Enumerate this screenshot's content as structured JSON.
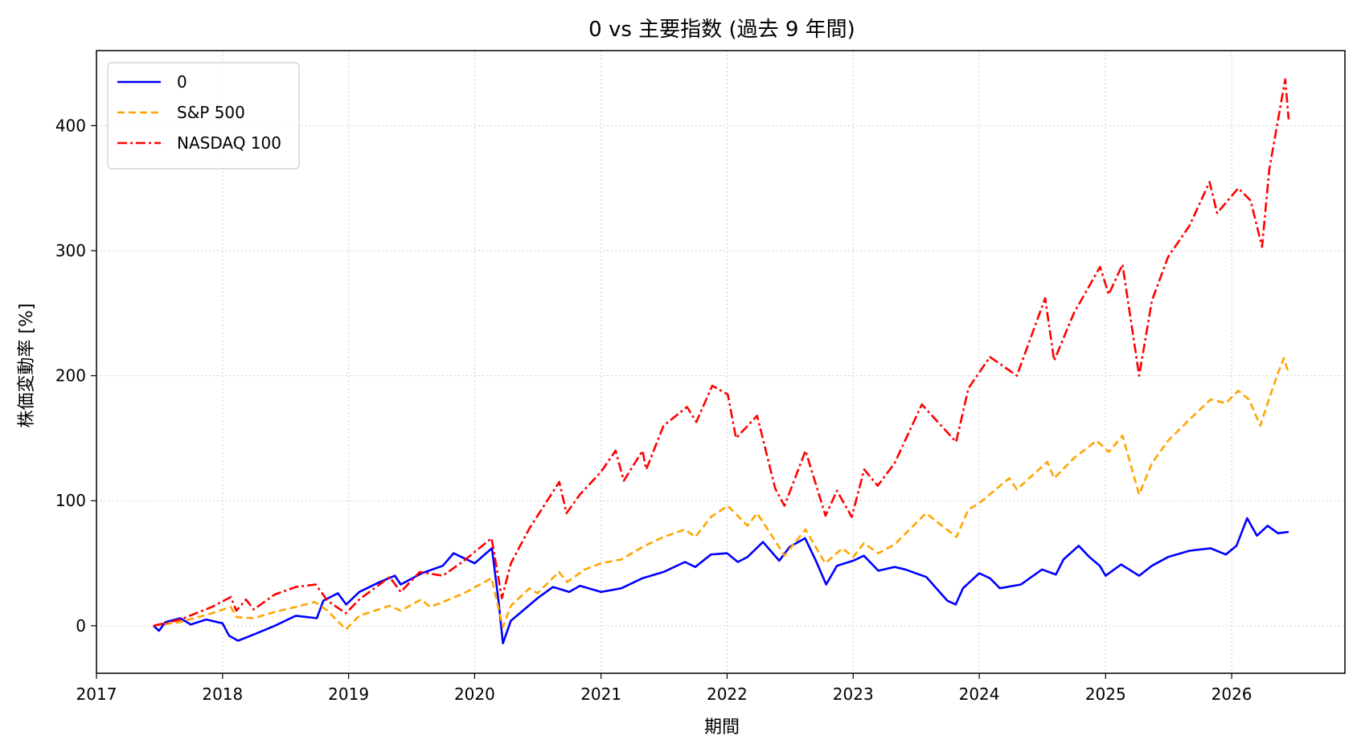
{
  "chart_data": {
    "type": "line",
    "title": "0 vs 主要指数 (過去 9 年間)",
    "xlabel": "期間",
    "ylabel": "株価変動率 [%]",
    "xlim": [
      "2017-01-01",
      "2026-11-25"
    ],
    "ylim": [
      -38,
      460
    ],
    "x_ticks": [
      "2017",
      "2018",
      "2019",
      "2020",
      "2021",
      "2022",
      "2023",
      "2024",
      "2025",
      "2026"
    ],
    "y_ticks": [
      0,
      100,
      200,
      300,
      400
    ],
    "grid": true,
    "legend_position": "top-left",
    "series": [
      {
        "name": "0",
        "color": "#0000ff",
        "style": "solid",
        "points": [
          [
            "2017-06-15",
            0
          ],
          [
            "2017-07-01",
            -4
          ],
          [
            "2017-07-20",
            3
          ],
          [
            "2017-09-01",
            6
          ],
          [
            "2017-10-01",
            1
          ],
          [
            "2017-11-15",
            5
          ],
          [
            "2018-01-01",
            2
          ],
          [
            "2018-01-20",
            -8
          ],
          [
            "2018-02-15",
            -12
          ],
          [
            "2018-04-01",
            -7
          ],
          [
            "2018-06-01",
            0
          ],
          [
            "2018-08-01",
            8
          ],
          [
            "2018-10-01",
            6
          ],
          [
            "2018-10-20",
            20
          ],
          [
            "2018-12-01",
            26
          ],
          [
            "2018-12-25",
            17
          ],
          [
            "2019-02-01",
            27
          ],
          [
            "2019-04-01",
            35
          ],
          [
            "2019-05-15",
            40
          ],
          [
            "2019-06-01",
            33
          ],
          [
            "2019-08-01",
            42
          ],
          [
            "2019-10-01",
            48
          ],
          [
            "2019-11-01",
            58
          ],
          [
            "2020-01-01",
            50
          ],
          [
            "2020-02-20",
            62
          ],
          [
            "2020-03-10",
            20
          ],
          [
            "2020-03-23",
            -14
          ],
          [
            "2020-04-15",
            4
          ],
          [
            "2020-05-15",
            11
          ],
          [
            "2020-07-01",
            22
          ],
          [
            "2020-08-15",
            31
          ],
          [
            "2020-10-01",
            27
          ],
          [
            "2020-11-01",
            32
          ],
          [
            "2021-01-01",
            27
          ],
          [
            "2021-03-01",
            30
          ],
          [
            "2021-05-01",
            38
          ],
          [
            "2021-07-01",
            43
          ],
          [
            "2021-09-01",
            51
          ],
          [
            "2021-10-01",
            47
          ],
          [
            "2021-11-15",
            57
          ],
          [
            "2022-01-01",
            58
          ],
          [
            "2022-02-01",
            51
          ],
          [
            "2022-03-01",
            55
          ],
          [
            "2022-04-15",
            67
          ],
          [
            "2022-06-01",
            52
          ],
          [
            "2022-07-01",
            63
          ],
          [
            "2022-08-15",
            70
          ],
          [
            "2022-09-15",
            52
          ],
          [
            "2022-10-15",
            33
          ],
          [
            "2022-11-15",
            48
          ],
          [
            "2023-01-01",
            52
          ],
          [
            "2023-02-01",
            56
          ],
          [
            "2023-03-15",
            44
          ],
          [
            "2023-05-01",
            47
          ],
          [
            "2023-06-01",
            45
          ],
          [
            "2023-08-01",
            39
          ],
          [
            "2023-10-01",
            20
          ],
          [
            "2023-10-25",
            17
          ],
          [
            "2023-11-15",
            30
          ],
          [
            "2024-01-01",
            42
          ],
          [
            "2024-02-01",
            38
          ],
          [
            "2024-03-01",
            30
          ],
          [
            "2024-05-01",
            33
          ],
          [
            "2024-07-01",
            45
          ],
          [
            "2024-08-10",
            41
          ],
          [
            "2024-09-01",
            53
          ],
          [
            "2024-10-15",
            64
          ],
          [
            "2024-11-15",
            55
          ],
          [
            "2024-12-15",
            48
          ],
          [
            "2025-01-01",
            40
          ],
          [
            "2025-02-15",
            49
          ],
          [
            "2025-04-08",
            40
          ],
          [
            "2025-05-15",
            48
          ],
          [
            "2025-07-01",
            55
          ],
          [
            "2025-09-01",
            60
          ],
          [
            "2025-11-01",
            62
          ],
          [
            "2025-12-15",
            57
          ],
          [
            "2026-01-15",
            64
          ],
          [
            "2026-02-15",
            86
          ],
          [
            "2026-03-15",
            72
          ],
          [
            "2026-04-15",
            80
          ],
          [
            "2026-05-15",
            74
          ],
          [
            "2026-06-15",
            75
          ]
        ]
      },
      {
        "name": "S&P 500",
        "color": "#ffa500",
        "style": "dashed",
        "points": [
          [
            "2017-06-15",
            0
          ],
          [
            "2017-09-01",
            3
          ],
          [
            "2017-12-01",
            10
          ],
          [
            "2018-01-25",
            15
          ],
          [
            "2018-02-10",
            7
          ],
          [
            "2018-04-01",
            6
          ],
          [
            "2018-06-01",
            11
          ],
          [
            "2018-08-01",
            15
          ],
          [
            "2018-09-25",
            19
          ],
          [
            "2018-11-01",
            12
          ],
          [
            "2018-12-24",
            -3
          ],
          [
            "2019-02-01",
            8
          ],
          [
            "2019-04-30",
            16
          ],
          [
            "2019-06-01",
            12
          ],
          [
            "2019-07-30",
            21
          ],
          [
            "2019-08-25",
            15
          ],
          [
            "2019-10-01",
            19
          ],
          [
            "2019-12-01",
            26
          ],
          [
            "2020-02-19",
            38
          ],
          [
            "2020-03-23",
            -1
          ],
          [
            "2020-04-15",
            16
          ],
          [
            "2020-06-08",
            30
          ],
          [
            "2020-07-01",
            26
          ],
          [
            "2020-09-01",
            43
          ],
          [
            "2020-09-25",
            35
          ],
          [
            "2020-11-15",
            45
          ],
          [
            "2021-01-01",
            50
          ],
          [
            "2021-03-01",
            53
          ],
          [
            "2021-05-01",
            63
          ],
          [
            "2021-07-01",
            71
          ],
          [
            "2021-09-01",
            77
          ],
          [
            "2021-10-01",
            71
          ],
          [
            "2021-11-15",
            87
          ],
          [
            "2022-01-03",
            96
          ],
          [
            "2022-03-01",
            80
          ],
          [
            "2022-03-29",
            90
          ],
          [
            "2022-05-20",
            68
          ],
          [
            "2022-06-16",
            56
          ],
          [
            "2022-08-16",
            77
          ],
          [
            "2022-10-12",
            50
          ],
          [
            "2022-12-01",
            62
          ],
          [
            "2023-01-01",
            55
          ],
          [
            "2023-02-01",
            66
          ],
          [
            "2023-03-15",
            58
          ],
          [
            "2023-05-01",
            65
          ],
          [
            "2023-07-31",
            90
          ],
          [
            "2023-10-27",
            71
          ],
          [
            "2023-12-01",
            93
          ],
          [
            "2024-01-01",
            98
          ],
          [
            "2024-03-28",
            118
          ],
          [
            "2024-04-19",
            109
          ],
          [
            "2024-07-16",
            131
          ],
          [
            "2024-08-05",
            118
          ],
          [
            "2024-10-01",
            134
          ],
          [
            "2024-12-06",
            148
          ],
          [
            "2025-01-10",
            139
          ],
          [
            "2025-02-19",
            152
          ],
          [
            "2025-04-08",
            105
          ],
          [
            "2025-05-15",
            130
          ],
          [
            "2025-07-01",
            148
          ],
          [
            "2025-09-01",
            165
          ],
          [
            "2025-11-01",
            181
          ],
          [
            "2025-12-15",
            178
          ],
          [
            "2026-01-20",
            188
          ],
          [
            "2026-02-20",
            181
          ],
          [
            "2026-03-25",
            160
          ],
          [
            "2026-04-15",
            178
          ],
          [
            "2026-05-15",
            202
          ],
          [
            "2026-06-01",
            214
          ],
          [
            "2026-06-15",
            202
          ]
        ]
      },
      {
        "name": "NASDAQ 100",
        "color": "#ff0000",
        "style": "dashdot",
        "points": [
          [
            "2017-06-15",
            0
          ],
          [
            "2017-09-01",
            5
          ],
          [
            "2017-12-01",
            15
          ],
          [
            "2018-01-25",
            23
          ],
          [
            "2018-02-10",
            12
          ],
          [
            "2018-03-10",
            21
          ],
          [
            "2018-04-01",
            13
          ],
          [
            "2018-06-01",
            25
          ],
          [
            "2018-08-01",
            31
          ],
          [
            "2018-09-28",
            33
          ],
          [
            "2018-11-01",
            20
          ],
          [
            "2018-12-24",
            10
          ],
          [
            "2019-02-01",
            21
          ],
          [
            "2019-04-30",
            39
          ],
          [
            "2019-06-01",
            27
          ],
          [
            "2019-07-26",
            43
          ],
          [
            "2019-10-01",
            40
          ],
          [
            "2019-12-01",
            52
          ],
          [
            "2020-02-19",
            70
          ],
          [
            "2020-03-20",
            22
          ],
          [
            "2020-04-15",
            50
          ],
          [
            "2020-06-08",
            78
          ],
          [
            "2020-09-02",
            115
          ],
          [
            "2020-09-23",
            90
          ],
          [
            "2020-11-01",
            105
          ],
          [
            "2021-01-01",
            123
          ],
          [
            "2021-02-12",
            140
          ],
          [
            "2021-03-08",
            116
          ],
          [
            "2021-05-01",
            140
          ],
          [
            "2021-05-12",
            125
          ],
          [
            "2021-07-01",
            160
          ],
          [
            "2021-09-07",
            175
          ],
          [
            "2021-10-04",
            163
          ],
          [
            "2021-11-19",
            192
          ],
          [
            "2022-01-03",
            185
          ],
          [
            "2022-01-27",
            150
          ],
          [
            "2022-03-29",
            168
          ],
          [
            "2022-05-20",
            110
          ],
          [
            "2022-06-16",
            96
          ],
          [
            "2022-08-16",
            140
          ],
          [
            "2022-10-13",
            88
          ],
          [
            "2022-11-15",
            108
          ],
          [
            "2022-12-28",
            87
          ],
          [
            "2023-02-02",
            125
          ],
          [
            "2023-03-13",
            112
          ],
          [
            "2023-05-01",
            130
          ],
          [
            "2023-07-19",
            177
          ],
          [
            "2023-10-26",
            147
          ],
          [
            "2023-12-01",
            190
          ],
          [
            "2024-02-01",
            215
          ],
          [
            "2024-04-19",
            200
          ],
          [
            "2024-07-10",
            262
          ],
          [
            "2024-08-05",
            212
          ],
          [
            "2024-10-01",
            250
          ],
          [
            "2024-12-16",
            287
          ],
          [
            "2025-01-10",
            265
          ],
          [
            "2025-02-19",
            289
          ],
          [
            "2025-04-08",
            200
          ],
          [
            "2025-05-15",
            260
          ],
          [
            "2025-07-01",
            295
          ],
          [
            "2025-09-01",
            320
          ],
          [
            "2025-10-29",
            355
          ],
          [
            "2025-11-20",
            330
          ],
          [
            "2026-01-20",
            350
          ],
          [
            "2026-02-25",
            340
          ],
          [
            "2026-03-30",
            303
          ],
          [
            "2026-04-20",
            365
          ],
          [
            "2026-05-25",
            420
          ],
          [
            "2026-06-05",
            437
          ],
          [
            "2026-06-15",
            405
          ]
        ]
      }
    ]
  }
}
